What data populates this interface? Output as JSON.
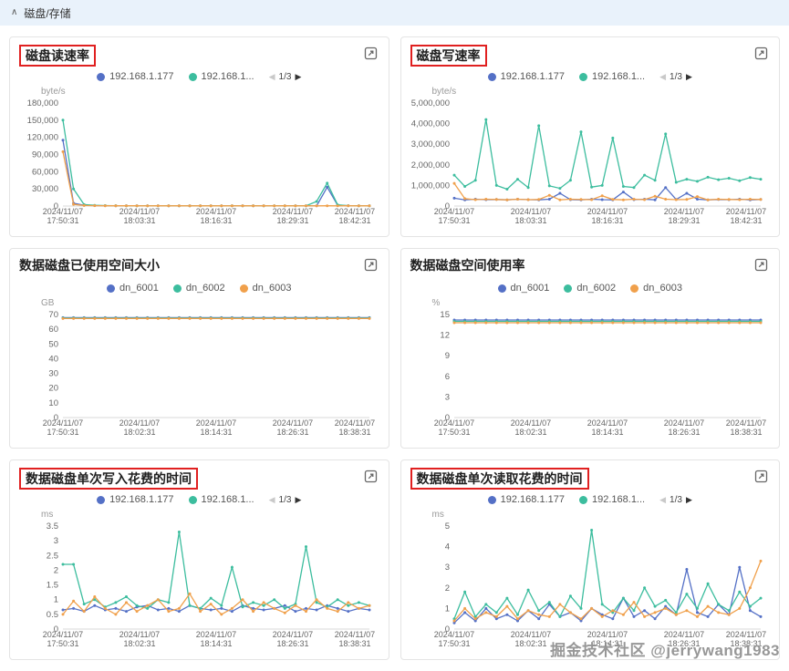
{
  "section": {
    "collapse_icon": "∧",
    "title": "磁盘/存储"
  },
  "watermark": {
    "text": "掘金技术社区 @jerrywang1983"
  },
  "icons": {
    "prev": "◀",
    "next": "▶"
  },
  "colors": {
    "blue": "#5470c6",
    "green": "#3cbd9e",
    "orange": "#f0a04b",
    "highlight": "#e02020"
  },
  "chart_data": [
    {
      "id": "disk-read-rate",
      "type": "line",
      "title": "磁盘读速率",
      "highlighted": true,
      "ylabel": "byte/s",
      "ylim": [
        0,
        180000
      ],
      "yticks": [
        0,
        30000,
        60000,
        90000,
        120000,
        150000,
        180000
      ],
      "x_ticklabels": [
        [
          "2024/11/07",
          "17:50:31"
        ],
        [
          "2024/11/07",
          "18:03:31"
        ],
        [
          "2024/11/07",
          "18:16:31"
        ],
        [
          "2024/11/07",
          "18:29:31"
        ],
        [
          "2024/11/07",
          "18:42:31"
        ]
      ],
      "legend": [
        {
          "label": "192.168.1.177",
          "color": "#5470c6"
        },
        {
          "label": "192.168.1...",
          "color": "#3cbd9e"
        }
      ],
      "pagination": "1/3",
      "series": [
        {
          "color": "#5470c6",
          "values": [
            115000,
            5000,
            1200,
            800,
            600,
            500,
            450,
            400,
            380,
            400,
            390,
            400,
            380,
            390,
            400,
            380,
            390,
            400,
            380,
            390,
            400,
            380,
            390,
            400,
            380,
            33000,
            1500,
            600,
            450,
            400
          ]
        },
        {
          "color": "#3cbd9e",
          "values": [
            150000,
            30000,
            2600,
            1200,
            800,
            600,
            500,
            450,
            420,
            430,
            420,
            430,
            420,
            430,
            420,
            430,
            420,
            430,
            420,
            430,
            420,
            430,
            420,
            430,
            8000,
            40000,
            2000,
            700,
            500,
            430
          ]
        },
        {
          "color": "#f0a04b",
          "values": [
            95000,
            3000,
            900,
            600,
            500,
            450,
            420,
            400,
            390,
            400,
            390,
            400,
            390,
            400,
            390,
            400,
            390,
            400,
            390,
            400,
            390,
            400,
            390,
            400,
            390,
            400,
            390,
            400,
            390,
            400
          ]
        }
      ]
    },
    {
      "id": "disk-write-rate",
      "type": "line",
      "title": "磁盘写速率",
      "highlighted": true,
      "ylabel": "byte/s",
      "ylim": [
        0,
        5000000
      ],
      "yticks": [
        0,
        1000000,
        2000000,
        3000000,
        4000000,
        5000000
      ],
      "x_ticklabels": [
        [
          "2024/11/07",
          "17:50:31"
        ],
        [
          "2024/11/07",
          "18:03:31"
        ],
        [
          "2024/11/07",
          "18:16:31"
        ],
        [
          "2024/11/07",
          "18:29:31"
        ],
        [
          "2024/11/07",
          "18:42:31"
        ]
      ],
      "legend": [
        {
          "label": "192.168.1.177",
          "color": "#5470c6"
        },
        {
          "label": "192.168.1...",
          "color": "#3cbd9e"
        }
      ],
      "pagination": "1/3",
      "series": [
        {
          "color": "#5470c6",
          "values": [
            380000,
            300000,
            330000,
            310000,
            320000,
            300000,
            330000,
            310000,
            300000,
            330000,
            620000,
            310000,
            300000,
            330000,
            310000,
            300000,
            680000,
            310000,
            330000,
            300000,
            900000,
            320000,
            620000,
            330000,
            300000,
            320000,
            310000,
            330000,
            300000,
            320000
          ]
        },
        {
          "color": "#3cbd9e",
          "values": [
            1500000,
            950000,
            1250000,
            4200000,
            1000000,
            820000,
            1300000,
            900000,
            3900000,
            980000,
            860000,
            1250000,
            3600000,
            920000,
            1000000,
            3300000,
            950000,
            900000,
            1500000,
            1250000,
            3500000,
            1150000,
            1300000,
            1200000,
            1400000,
            1280000,
            1350000,
            1230000,
            1380000,
            1300000
          ]
        },
        {
          "color": "#f0a04b",
          "values": [
            1100000,
            360000,
            310000,
            330000,
            320000,
            300000,
            330000,
            310000,
            320000,
            520000,
            300000,
            330000,
            320000,
            310000,
            500000,
            320000,
            300000,
            330000,
            310000,
            480000,
            330000,
            310000,
            320000,
            460000,
            300000,
            330000,
            320000,
            310000,
            330000,
            320000
          ]
        }
      ]
    },
    {
      "id": "data-disk-used-space",
      "type": "line",
      "title": "数据磁盘已使用空间大小",
      "highlighted": false,
      "ylabel": "GB",
      "ylim": [
        0,
        70
      ],
      "yticks": [
        0,
        10,
        20,
        30,
        40,
        50,
        60,
        70
      ],
      "x_ticklabels": [
        [
          "2024/11/07",
          "17:50:31"
        ],
        [
          "2024/11/07",
          "18:02:31"
        ],
        [
          "2024/11/07",
          "18:14:31"
        ],
        [
          "2024/11/07",
          "18:26:31"
        ],
        [
          "2024/11/07",
          "18:38:31"
        ]
      ],
      "legend": [
        {
          "label": "dn_6001",
          "color": "#5470c6"
        },
        {
          "label": "dn_6002",
          "color": "#3cbd9e"
        },
        {
          "label": "dn_6003",
          "color": "#f0a04b"
        }
      ],
      "series": [
        {
          "color": "#5470c6",
          "values": [
            67.9,
            67.9,
            67.9,
            67.9,
            67.9,
            67.9,
            67.9,
            67.9,
            67.9,
            67.9,
            67.9,
            67.9,
            67.9,
            67.9,
            67.9,
            67.9,
            67.9,
            67.9,
            67.9,
            67.9,
            67.9,
            67.9,
            67.9,
            67.9,
            67.9,
            67.9,
            67.9,
            67.9,
            67.9,
            67.9
          ]
        },
        {
          "color": "#3cbd9e",
          "values": [
            67.6,
            67.6,
            67.6,
            67.6,
            67.6,
            67.6,
            67.6,
            67.6,
            67.6,
            67.6,
            67.6,
            67.6,
            67.6,
            67.6,
            67.6,
            67.6,
            67.6,
            67.6,
            67.6,
            67.6,
            67.6,
            67.6,
            67.6,
            67.6,
            67.6,
            67.6,
            67.6,
            67.6,
            67.6,
            67.6
          ]
        },
        {
          "color": "#f0a04b",
          "values": [
            67.3,
            67.3,
            67.3,
            67.3,
            67.3,
            67.3,
            67.3,
            67.3,
            67.3,
            67.3,
            67.3,
            67.3,
            67.3,
            67.3,
            67.3,
            67.3,
            67.3,
            67.3,
            67.3,
            67.3,
            67.3,
            67.3,
            67.3,
            67.3,
            67.3,
            67.3,
            67.3,
            67.3,
            67.3,
            67.3
          ]
        }
      ]
    },
    {
      "id": "data-disk-usage-percent",
      "type": "line",
      "title": "数据磁盘空间使用率",
      "highlighted": false,
      "ylabel": "%",
      "ylim": [
        0,
        15
      ],
      "yticks": [
        0,
        3,
        6,
        9,
        12,
        15
      ],
      "x_ticklabels": [
        [
          "2024/11/07",
          "17:50:31"
        ],
        [
          "2024/11/07",
          "18:02:31"
        ],
        [
          "2024/11/07",
          "18:14:31"
        ],
        [
          "2024/11/07",
          "18:26:31"
        ],
        [
          "2024/11/07",
          "18:38:31"
        ]
      ],
      "legend": [
        {
          "label": "dn_6001",
          "color": "#5470c6"
        },
        {
          "label": "dn_6002",
          "color": "#3cbd9e"
        },
        {
          "label": "dn_6003",
          "color": "#f0a04b"
        }
      ],
      "series": [
        {
          "color": "#5470c6",
          "values": [
            14.2,
            14.2,
            14.2,
            14.2,
            14.2,
            14.2,
            14.2,
            14.2,
            14.2,
            14.2,
            14.2,
            14.2,
            14.2,
            14.2,
            14.2,
            14.2,
            14.2,
            14.2,
            14.2,
            14.2,
            14.2,
            14.2,
            14.2,
            14.2,
            14.2,
            14.2,
            14.2,
            14.2,
            14.2,
            14.2
          ]
        },
        {
          "color": "#3cbd9e",
          "values": [
            14.0,
            14.0,
            14.0,
            14.0,
            14.0,
            14.0,
            14.0,
            14.0,
            14.0,
            14.0,
            14.0,
            14.0,
            14.0,
            14.0,
            14.0,
            14.0,
            14.0,
            14.0,
            14.0,
            14.0,
            14.0,
            14.0,
            14.0,
            14.0,
            14.0,
            14.0,
            14.0,
            14.0,
            14.0,
            14.0
          ]
        },
        {
          "color": "#f0a04b",
          "values": [
            13.8,
            13.8,
            13.8,
            13.8,
            13.8,
            13.8,
            13.8,
            13.8,
            13.8,
            13.8,
            13.8,
            13.8,
            13.8,
            13.8,
            13.8,
            13.8,
            13.8,
            13.8,
            13.8,
            13.8,
            13.8,
            13.8,
            13.8,
            13.8,
            13.8,
            13.8,
            13.8,
            13.8,
            13.8,
            13.8
          ]
        }
      ]
    },
    {
      "id": "data-disk-write-time",
      "type": "line",
      "title": "数据磁盘单次写入花费的时间",
      "highlighted": true,
      "ylabel": "ms",
      "ylim": [
        0,
        3.5
      ],
      "yticks": [
        0,
        0.5,
        1,
        1.5,
        2,
        2.5,
        3,
        3.5
      ],
      "x_ticklabels": [
        [
          "2024/11/07",
          "17:50:31"
        ],
        [
          "2024/11/07",
          "18:02:31"
        ],
        [
          "2024/11/07",
          "18:14:31"
        ],
        [
          "2024/11/07",
          "18:26:31"
        ],
        [
          "2024/11/07",
          "18:38:31"
        ]
      ],
      "legend": [
        {
          "label": "192.168.1.177",
          "color": "#5470c6"
        },
        {
          "label": "192.168.1...",
          "color": "#3cbd9e"
        }
      ],
      "pagination": "1/3",
      "series": [
        {
          "color": "#5470c6",
          "values": [
            0.65,
            0.7,
            0.6,
            0.8,
            0.65,
            0.7,
            0.6,
            0.75,
            0.8,
            0.65,
            0.7,
            0.6,
            0.8,
            0.7,
            0.65,
            0.7,
            0.6,
            0.8,
            0.7,
            0.65,
            0.7,
            0.8,
            0.6,
            0.7,
            0.65,
            0.8,
            0.7,
            0.6,
            0.7,
            0.65
          ]
        },
        {
          "color": "#3cbd9e",
          "values": [
            2.2,
            2.2,
            0.85,
            1.0,
            0.75,
            0.9,
            1.1,
            0.8,
            0.7,
            1.0,
            0.9,
            3.3,
            0.8,
            0.7,
            1.05,
            0.8,
            2.1,
            0.75,
            0.9,
            0.8,
            1.0,
            0.7,
            0.85,
            2.8,
            0.9,
            0.75,
            1.0,
            0.8,
            0.9,
            0.8
          ]
        },
        {
          "color": "#f0a04b",
          "values": [
            0.5,
            0.95,
            0.6,
            1.1,
            0.7,
            0.5,
            0.9,
            0.6,
            0.8,
            1.0,
            0.6,
            0.7,
            1.2,
            0.6,
            0.85,
            0.5,
            0.7,
            1.0,
            0.6,
            0.9,
            0.7,
            0.55,
            0.8,
            0.6,
            1.0,
            0.7,
            0.6,
            0.9,
            0.7,
            0.8
          ]
        }
      ]
    },
    {
      "id": "data-disk-read-time",
      "type": "line",
      "title": "数据磁盘单次读取花费的时间",
      "highlighted": true,
      "ylabel": "ms",
      "ylim": [
        0,
        5
      ],
      "yticks": [
        0,
        1,
        2,
        3,
        4,
        5
      ],
      "x_ticklabels": [
        [
          "2024/11/07",
          "17:50:31"
        ],
        [
          "2024/11/07",
          "18:02:31"
        ],
        [
          "2024/11/07",
          "18:14:31"
        ],
        [
          "2024/11/07",
          "18:26:31"
        ],
        [
          "2024/11/07",
          "18:38:31"
        ]
      ],
      "legend": [
        {
          "label": "192.168.1.177",
          "color": "#5470c6"
        },
        {
          "label": "192.168.1...",
          "color": "#3cbd9e"
        }
      ],
      "pagination": "1/3",
      "series": [
        {
          "color": "#5470c6",
          "values": [
            0.3,
            0.8,
            0.4,
            1.0,
            0.5,
            0.7,
            0.4,
            0.9,
            0.5,
            1.2,
            0.6,
            0.8,
            0.4,
            1.0,
            0.7,
            0.5,
            1.5,
            0.6,
            0.9,
            0.5,
            1.1,
            0.7,
            2.9,
            0.8,
            0.6,
            1.2,
            0.7,
            3.0,
            0.9,
            0.6
          ]
        },
        {
          "color": "#3cbd9e",
          "values": [
            0.5,
            1.8,
            0.6,
            1.2,
            0.8,
            1.5,
            0.7,
            1.9,
            0.9,
            1.3,
            0.6,
            1.6,
            1.0,
            4.8,
            1.2,
            0.8,
            1.5,
            0.9,
            2.0,
            1.1,
            1.4,
            0.8,
            1.7,
            1.0,
            2.2,
            1.2,
            0.9,
            1.8,
            1.1,
            1.5
          ]
        },
        {
          "color": "#f0a04b",
          "values": [
            0.4,
            1.0,
            0.5,
            0.8,
            0.6,
            1.1,
            0.5,
            0.9,
            0.7,
            0.6,
            1.2,
            0.8,
            0.5,
            1.0,
            0.6,
            0.9,
            0.7,
            1.3,
            0.6,
            0.8,
            1.0,
            0.7,
            0.9,
            0.6,
            1.1,
            0.8,
            0.7,
            1.0,
            2.0,
            3.3
          ]
        }
      ]
    }
  ]
}
